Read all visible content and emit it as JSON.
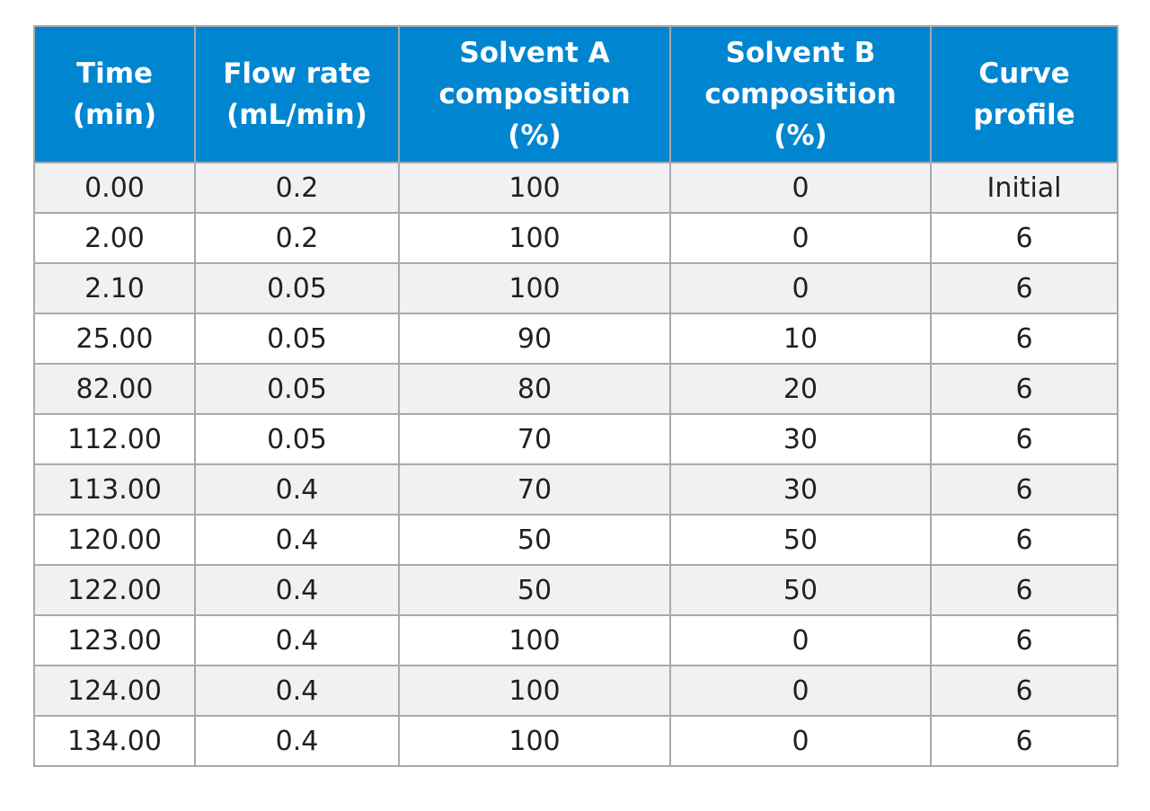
{
  "colors": {
    "header_bg": "#0086d1",
    "header_text": "#ffffff",
    "row_odd_bg": "#f1f1f3",
    "row_even_bg": "#ffffff",
    "border": "#a7a9ac",
    "body_text": "#231f20"
  },
  "headers": [
    {
      "lines": [
        "Time",
        "(min)"
      ]
    },
    {
      "lines": [
        "Flow rate",
        "(mL/min)"
      ]
    },
    {
      "lines": [
        "Solvent A",
        "composition",
        "(%)"
      ]
    },
    {
      "lines": [
        "Solvent B",
        "composition",
        "(%)"
      ]
    },
    {
      "lines": [
        "Curve",
        "profile"
      ]
    }
  ],
  "rows": [
    [
      "0.00",
      "0.2",
      "100",
      "0",
      "Initial"
    ],
    [
      "2.00",
      "0.2",
      "100",
      "0",
      "6"
    ],
    [
      "2.10",
      "0.05",
      "100",
      "0",
      "6"
    ],
    [
      "25.00",
      "0.05",
      "90",
      "10",
      "6"
    ],
    [
      "82.00",
      "0.05",
      "80",
      "20",
      "6"
    ],
    [
      "112.00",
      "0.05",
      "70",
      "30",
      "6"
    ],
    [
      "113.00",
      "0.4",
      "70",
      "30",
      "6"
    ],
    [
      "120.00",
      "0.4",
      "50",
      "50",
      "6"
    ],
    [
      "122.00",
      "0.4",
      "50",
      "50",
      "6"
    ],
    [
      "123.00",
      "0.4",
      "100",
      "0",
      "6"
    ],
    [
      "124.00",
      "0.4",
      "100",
      "0",
      "6"
    ],
    [
      "134.00",
      "0.4",
      "100",
      "0",
      "6"
    ]
  ]
}
